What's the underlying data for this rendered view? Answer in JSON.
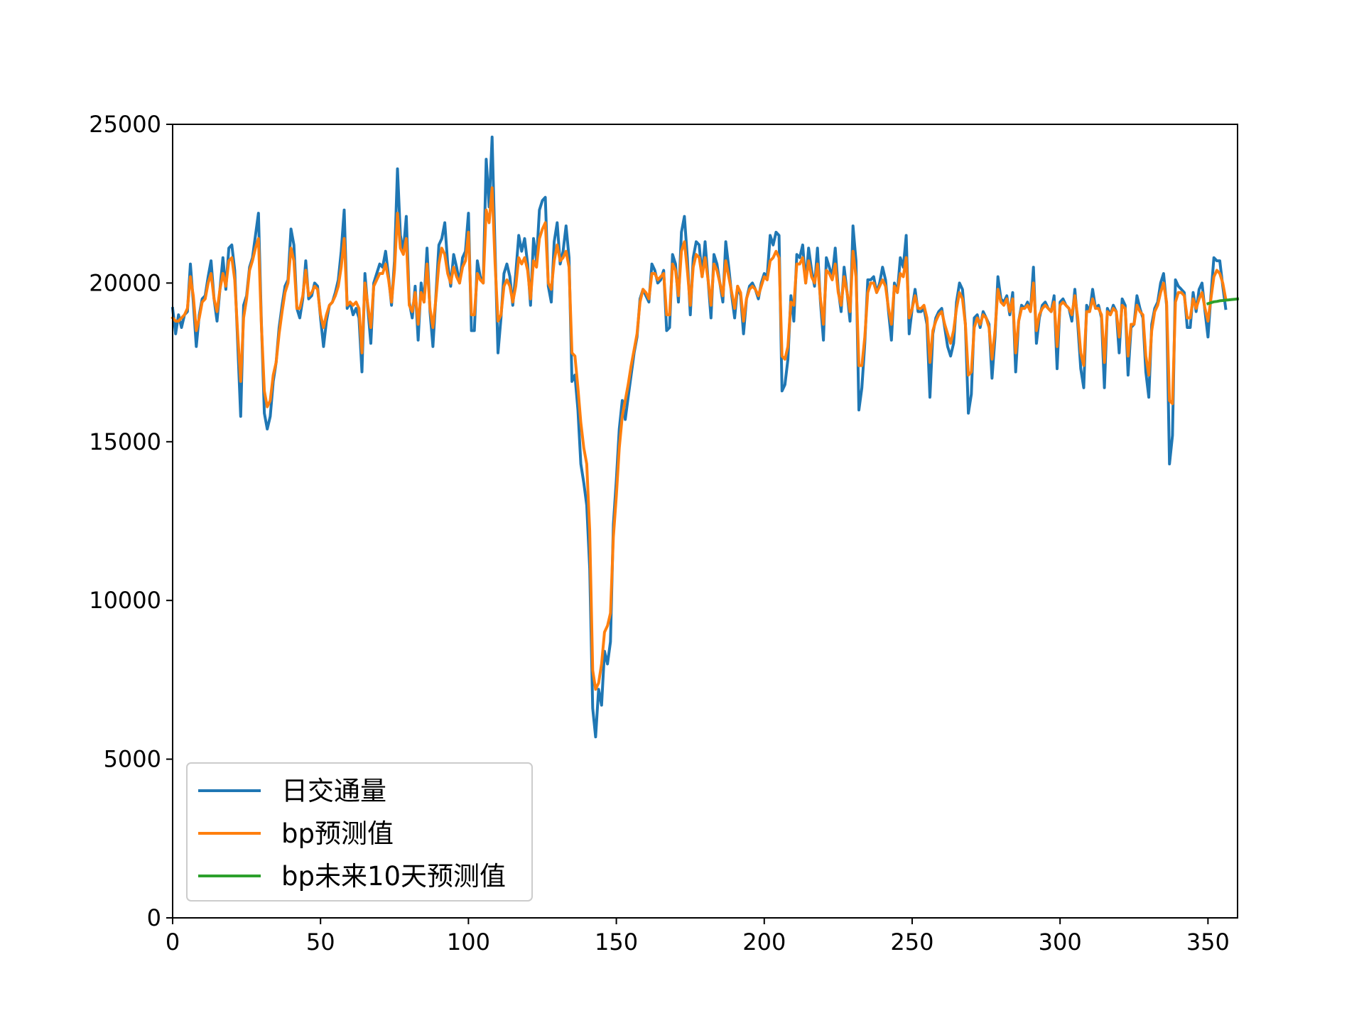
{
  "chart_data": {
    "type": "line",
    "title": "",
    "xlabel": "",
    "ylabel": "",
    "xlim": [
      0,
      360
    ],
    "ylim": [
      0,
      25000
    ],
    "xticks": [
      0,
      50,
      100,
      150,
      200,
      250,
      300,
      350
    ],
    "yticks": [
      0,
      5000,
      10000,
      15000,
      20000,
      25000
    ],
    "xtick_labels": [
      "0",
      "50",
      "100",
      "150",
      "200",
      "250",
      "300",
      "350"
    ],
    "ytick_labels": [
      "0",
      "5000",
      "10000",
      "15000",
      "20000",
      "25000"
    ],
    "grid": false,
    "legend_position": "lower-left",
    "series": [
      {
        "name": "日交通量",
        "color": "#1f77b4",
        "x_start": 0,
        "values": [
          19200,
          18400,
          19000,
          18600,
          19000,
          19100,
          20600,
          19400,
          18000,
          19000,
          19500,
          19600,
          20200,
          20700,
          19500,
          18800,
          19800,
          20800,
          19800,
          21100,
          21200,
          20400,
          18100,
          15800,
          19300,
          19600,
          20500,
          20800,
          21500,
          22200,
          18800,
          15900,
          15400,
          15800,
          16900,
          17500,
          18600,
          19300,
          19900,
          20100,
          21700,
          21200,
          19200,
          18900,
          19500,
          20700,
          19500,
          19600,
          20000,
          19900,
          18900,
          18000,
          18800,
          19300,
          19400,
          19700,
          20100,
          21000,
          22300,
          19200,
          19400,
          19000,
          19200,
          18900,
          17200,
          20300,
          19200,
          18100,
          20000,
          20300,
          20600,
          20500,
          21000,
          20200,
          19300,
          20700,
          23600,
          21500,
          21000,
          22100,
          19400,
          18900,
          19900,
          18200,
          20000,
          19400,
          21100,
          19100,
          18000,
          19600,
          21200,
          21400,
          21900,
          20600,
          19900,
          20900,
          20500,
          20000,
          20800,
          21000,
          22200,
          18500,
          18500,
          20700,
          20200,
          20000,
          23900,
          22400,
          24600,
          21000,
          17800,
          18900,
          20300,
          20600,
          20200,
          19300,
          20300,
          21500,
          21000,
          21400,
          20600,
          19300,
          21400,
          20700,
          22300,
          22600,
          22700,
          19900,
          19400,
          21300,
          21900,
          20600,
          21000,
          21800,
          20800,
          16900,
          17100,
          16000,
          14300,
          13700,
          13000,
          11000,
          6600,
          5700,
          7200,
          6700,
          8400,
          8000,
          8700,
          12400,
          13800,
          15400,
          16300,
          15700,
          16400,
          17100,
          17800,
          18300,
          19500,
          19800,
          19600,
          19400,
          20600,
          20400,
          20000,
          20100,
          20400,
          18500,
          18600,
          20900,
          20600,
          19400,
          21600,
          22100,
          20800,
          19000,
          20800,
          21300,
          21200,
          20200,
          21300,
          20100,
          18900,
          20900,
          20600,
          20000,
          19400,
          21300,
          20500,
          19600,
          18900,
          19900,
          19600,
          18400,
          19500,
          19900,
          20000,
          19800,
          19500,
          20000,
          20300,
          20200,
          21500,
          21200,
          21600,
          21500,
          16600,
          16800,
          17600,
          19600,
          18800,
          20900,
          20800,
          21200,
          20000,
          21100,
          20400,
          19900,
          21100,
          19400,
          18200,
          20800,
          20500,
          20200,
          21100,
          19800,
          19100,
          20500,
          19700,
          18800,
          21800,
          20700,
          16000,
          16700,
          18100,
          20100,
          20100,
          20200,
          19700,
          20000,
          20500,
          20100,
          19100,
          18200,
          20000,
          19700,
          20800,
          20500,
          21500,
          18400,
          19200,
          19800,
          19100,
          19100,
          19200,
          18700,
          16400,
          18400,
          18900,
          19100,
          19200,
          18600,
          18000,
          17700,
          18100,
          19400,
          20000,
          19800,
          18700,
          15900,
          16500,
          18900,
          19000,
          18600,
          19100,
          18900,
          18700,
          17000,
          18300,
          20200,
          19500,
          19400,
          19600,
          19000,
          19700,
          17200,
          18800,
          19300,
          19200,
          19400,
          19100,
          20500,
          18100,
          18900,
          19300,
          19400,
          19200,
          19100,
          19600,
          17300,
          19400,
          19500,
          19300,
          19200,
          18800,
          19800,
          18700,
          17300,
          16700,
          19300,
          19100,
          19800,
          19200,
          19300,
          18900,
          16700,
          19200,
          19000,
          19300,
          19100,
          17800,
          19500,
          19300,
          17100,
          18600,
          18700,
          19600,
          19200,
          18900,
          17200,
          16400,
          18700,
          19200,
          19400,
          20000,
          20300,
          19300,
          14300,
          15200,
          20100,
          19900,
          19800,
          19700,
          18600,
          18600,
          19700,
          19100,
          19800,
          20000,
          19100,
          18300,
          19600,
          20800,
          20700,
          20700,
          19900,
          19200
        ],
        "values_note": "estimated from chart"
      },
      {
        "name": "bp预测值",
        "color": "#ff7f0e",
        "x_start": 0,
        "values": [
          18900,
          18800,
          18800,
          18900,
          19000,
          19200,
          20200,
          19600,
          18500,
          18900,
          19400,
          19500,
          20000,
          20300,
          19500,
          19100,
          19800,
          20300,
          19900,
          20700,
          20800,
          20100,
          18400,
          16900,
          18900,
          19500,
          20400,
          20700,
          21100,
          21400,
          18700,
          16600,
          16100,
          16300,
          17100,
          17500,
          18400,
          19100,
          19700,
          20000,
          21100,
          20700,
          19200,
          19200,
          19600,
          20400,
          19600,
          19700,
          19900,
          19800,
          19000,
          18600,
          19000,
          19300,
          19400,
          19600,
          19900,
          20500,
          21400,
          19300,
          19400,
          19300,
          19400,
          19200,
          17800,
          20000,
          19300,
          18600,
          19900,
          20100,
          20300,
          20300,
          20600,
          20100,
          19400,
          20400,
          22200,
          21100,
          20900,
          21400,
          19300,
          19100,
          19700,
          18700,
          19700,
          19400,
          20600,
          19200,
          18600,
          19500,
          20600,
          21100,
          20900,
          20300,
          20000,
          20500,
          20200,
          20000,
          20500,
          20700,
          21600,
          19000,
          19000,
          20300,
          20100,
          20000,
          22300,
          21900,
          23000,
          20600,
          18800,
          19000,
          19900,
          20100,
          19900,
          19400,
          19900,
          20800,
          20600,
          20800,
          20400,
          19500,
          20700,
          20500,
          21400,
          21700,
          21900,
          20000,
          19800,
          20700,
          21200,
          20700,
          20800,
          21000,
          20500,
          17800,
          17700,
          16700,
          15600,
          14800,
          14300,
          12200,
          7800,
          7200,
          7400,
          8000,
          9000,
          9200,
          9600,
          12000,
          13300,
          14800,
          15800,
          16300,
          16800,
          17400,
          17900,
          18400,
          19400,
          19800,
          19700,
          19500,
          20300,
          20300,
          20100,
          20200,
          20300,
          19000,
          19000,
          20600,
          20400,
          19600,
          21000,
          21300,
          20400,
          19300,
          20500,
          20900,
          20800,
          20200,
          20800,
          20100,
          19300,
          20600,
          20400,
          20000,
          19600,
          20700,
          20200,
          19700,
          19200,
          19900,
          19700,
          18800,
          19500,
          19800,
          19900,
          19800,
          19600,
          19900,
          20200,
          20100,
          20700,
          20800,
          21000,
          20800,
          17700,
          17600,
          18000,
          19400,
          19300,
          20600,
          20600,
          20800,
          20000,
          20700,
          20200,
          20000,
          20600,
          19500,
          18700,
          20400,
          20300,
          20100,
          20600,
          19700,
          19300,
          20200,
          19700,
          19100,
          21000,
          20200,
          17400,
          17400,
          18300,
          19700,
          20000,
          20000,
          19700,
          19900,
          20100,
          19900,
          19200,
          18700,
          19900,
          19700,
          20300,
          20200,
          20800,
          18900,
          19200,
          19600,
          19200,
          19200,
          19300,
          18900,
          17500,
          18500,
          18800,
          19000,
          19100,
          18700,
          18400,
          18100,
          18500,
          19200,
          19700,
          19500,
          18700,
          17100,
          17200,
          18600,
          18900,
          18700,
          19000,
          18900,
          18600,
          17600,
          18500,
          19800,
          19400,
          19300,
          19500,
          19100,
          19500,
          17800,
          18800,
          19200,
          19200,
          19300,
          19100,
          20000,
          18500,
          19000,
          19200,
          19300,
          19200,
          19100,
          19400,
          18000,
          19300,
          19400,
          19300,
          19200,
          19000,
          19600,
          18900,
          17800,
          17400,
          19100,
          19100,
          19500,
          19200,
          19200,
          19000,
          17500,
          19100,
          19000,
          19200,
          19100,
          18300,
          19300,
          19200,
          17700,
          18700,
          18700,
          19300,
          19100,
          19000,
          17700,
          17100,
          18500,
          19100,
          19300,
          19700,
          20000,
          19400,
          16300,
          16200,
          19400,
          19700,
          19700,
          19600,
          18900,
          18900,
          19500,
          19200,
          19500,
          19700,
          19200,
          18800,
          19500,
          20200,
          20400,
          20300,
          20000,
          19500
        ],
        "values_note": "estimated from chart"
      },
      {
        "name": "bp未来10天预测值",
        "color": "#2ca02c",
        "x": [
          350,
          351,
          352,
          353,
          354,
          355,
          356,
          357,
          358,
          359,
          360
        ],
        "values": [
          19350,
          19380,
          19410,
          19420,
          19440,
          19450,
          19460,
          19470,
          19480,
          19490,
          19500
        ]
      }
    ]
  }
}
